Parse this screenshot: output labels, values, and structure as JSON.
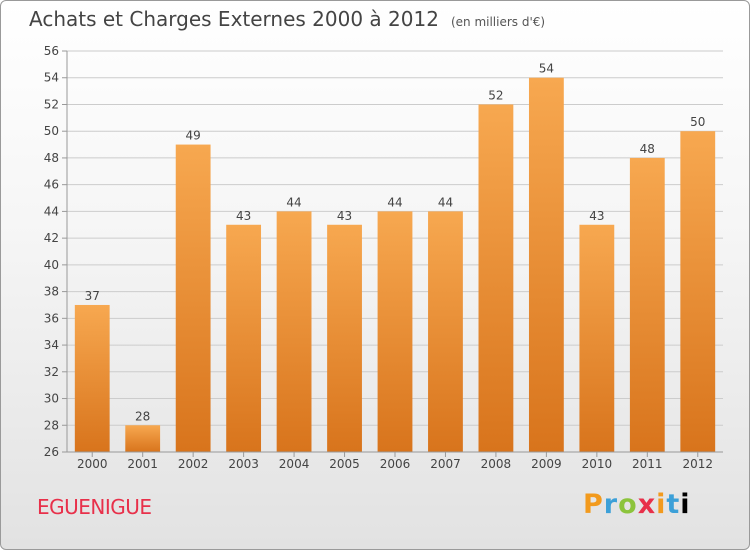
{
  "header": {
    "title": "Achats et Charges Externes 2000 à 2012",
    "unit": "(en milliers d'€)"
  },
  "footer": {
    "commune": "EGUENIGUE",
    "brand": "Proxiti"
  },
  "colors": {
    "bar_light": "#f7a850",
    "bar_dark": "#d8741c",
    "grid": "#cccccc",
    "axis": "#999999"
  },
  "chart_data": {
    "type": "bar",
    "title": "Achats et Charges Externes 2000 à 2012",
    "subtitle": "(en milliers d'€)",
    "categories": [
      "2000",
      "2001",
      "2002",
      "2003",
      "2004",
      "2005",
      "2006",
      "2007",
      "2008",
      "2009",
      "2010",
      "2011",
      "2012"
    ],
    "values": [
      37,
      28,
      49,
      43,
      44,
      43,
      44,
      44,
      52,
      54,
      43,
      48,
      50
    ],
    "ylim": [
      26,
      56
    ],
    "yticks": [
      26,
      28,
      30,
      32,
      34,
      36,
      38,
      40,
      42,
      44,
      46,
      48,
      50,
      52,
      54,
      56
    ],
    "grid": true,
    "xlabel": "",
    "ylabel": ""
  }
}
